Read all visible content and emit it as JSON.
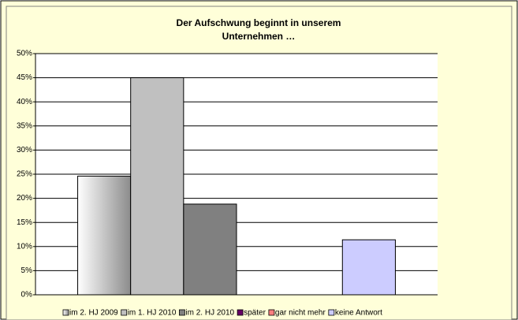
{
  "chart_data": {
    "type": "bar",
    "title": [
      "Der Aufschwung beginnt in unserem",
      "Unternehmen …"
    ],
    "categories": [
      null
    ],
    "series": [
      {
        "name": "im 2. HJ 2009",
        "color": "#8c8c8c",
        "gradient": true,
        "values": [
          24.6
        ]
      },
      {
        "name": "im 1. HJ 2010",
        "color": "#c0c0c0",
        "values": [
          45
        ]
      },
      {
        "name": "im 2. HJ 2010",
        "color": "#808080",
        "values": [
          18.8
        ]
      },
      {
        "name": "später",
        "color": "#660066",
        "values": [
          0
        ]
      },
      {
        "name": "gar nicht mehr",
        "color": "#ff8080",
        "values": [
          0
        ]
      },
      {
        "name": "keine Antwort",
        "color": "#ccccff",
        "values": [
          11.4
        ]
      }
    ],
    "ylim": [
      0,
      50
    ],
    "yticks": [
      {
        "value": 0,
        "label": "0%"
      },
      {
        "value": 5,
        "label": "5%"
      },
      {
        "value": 10,
        "label": "10%"
      },
      {
        "value": 15,
        "label": "15%"
      },
      {
        "value": 20,
        "label": "20%"
      },
      {
        "value": 25,
        "label": "25%"
      },
      {
        "value": 30,
        "label": "30%"
      },
      {
        "value": 35,
        "label": "35%"
      },
      {
        "value": 40,
        "label": "40%"
      },
      {
        "value": 45,
        "label": "45%"
      },
      {
        "value": 50,
        "label": "50%"
      }
    ],
    "grid": true,
    "legend": "bottom"
  }
}
